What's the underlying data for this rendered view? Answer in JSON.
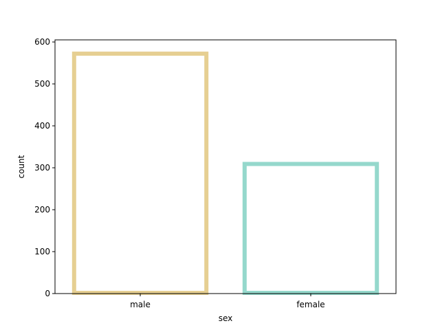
{
  "chart_data": {
    "type": "bar",
    "categories": [
      "male",
      "female"
    ],
    "values": [
      577,
      314
    ],
    "title": "",
    "xlabel": "sex",
    "ylabel": "count",
    "ylim": [
      0,
      605
    ],
    "yticks": [
      0,
      100,
      200,
      300,
      400,
      500,
      600
    ],
    "bar_style": "outline",
    "colors": [
      "#e6cf92",
      "#95d8cc"
    ],
    "grid": false,
    "legend": "none"
  }
}
